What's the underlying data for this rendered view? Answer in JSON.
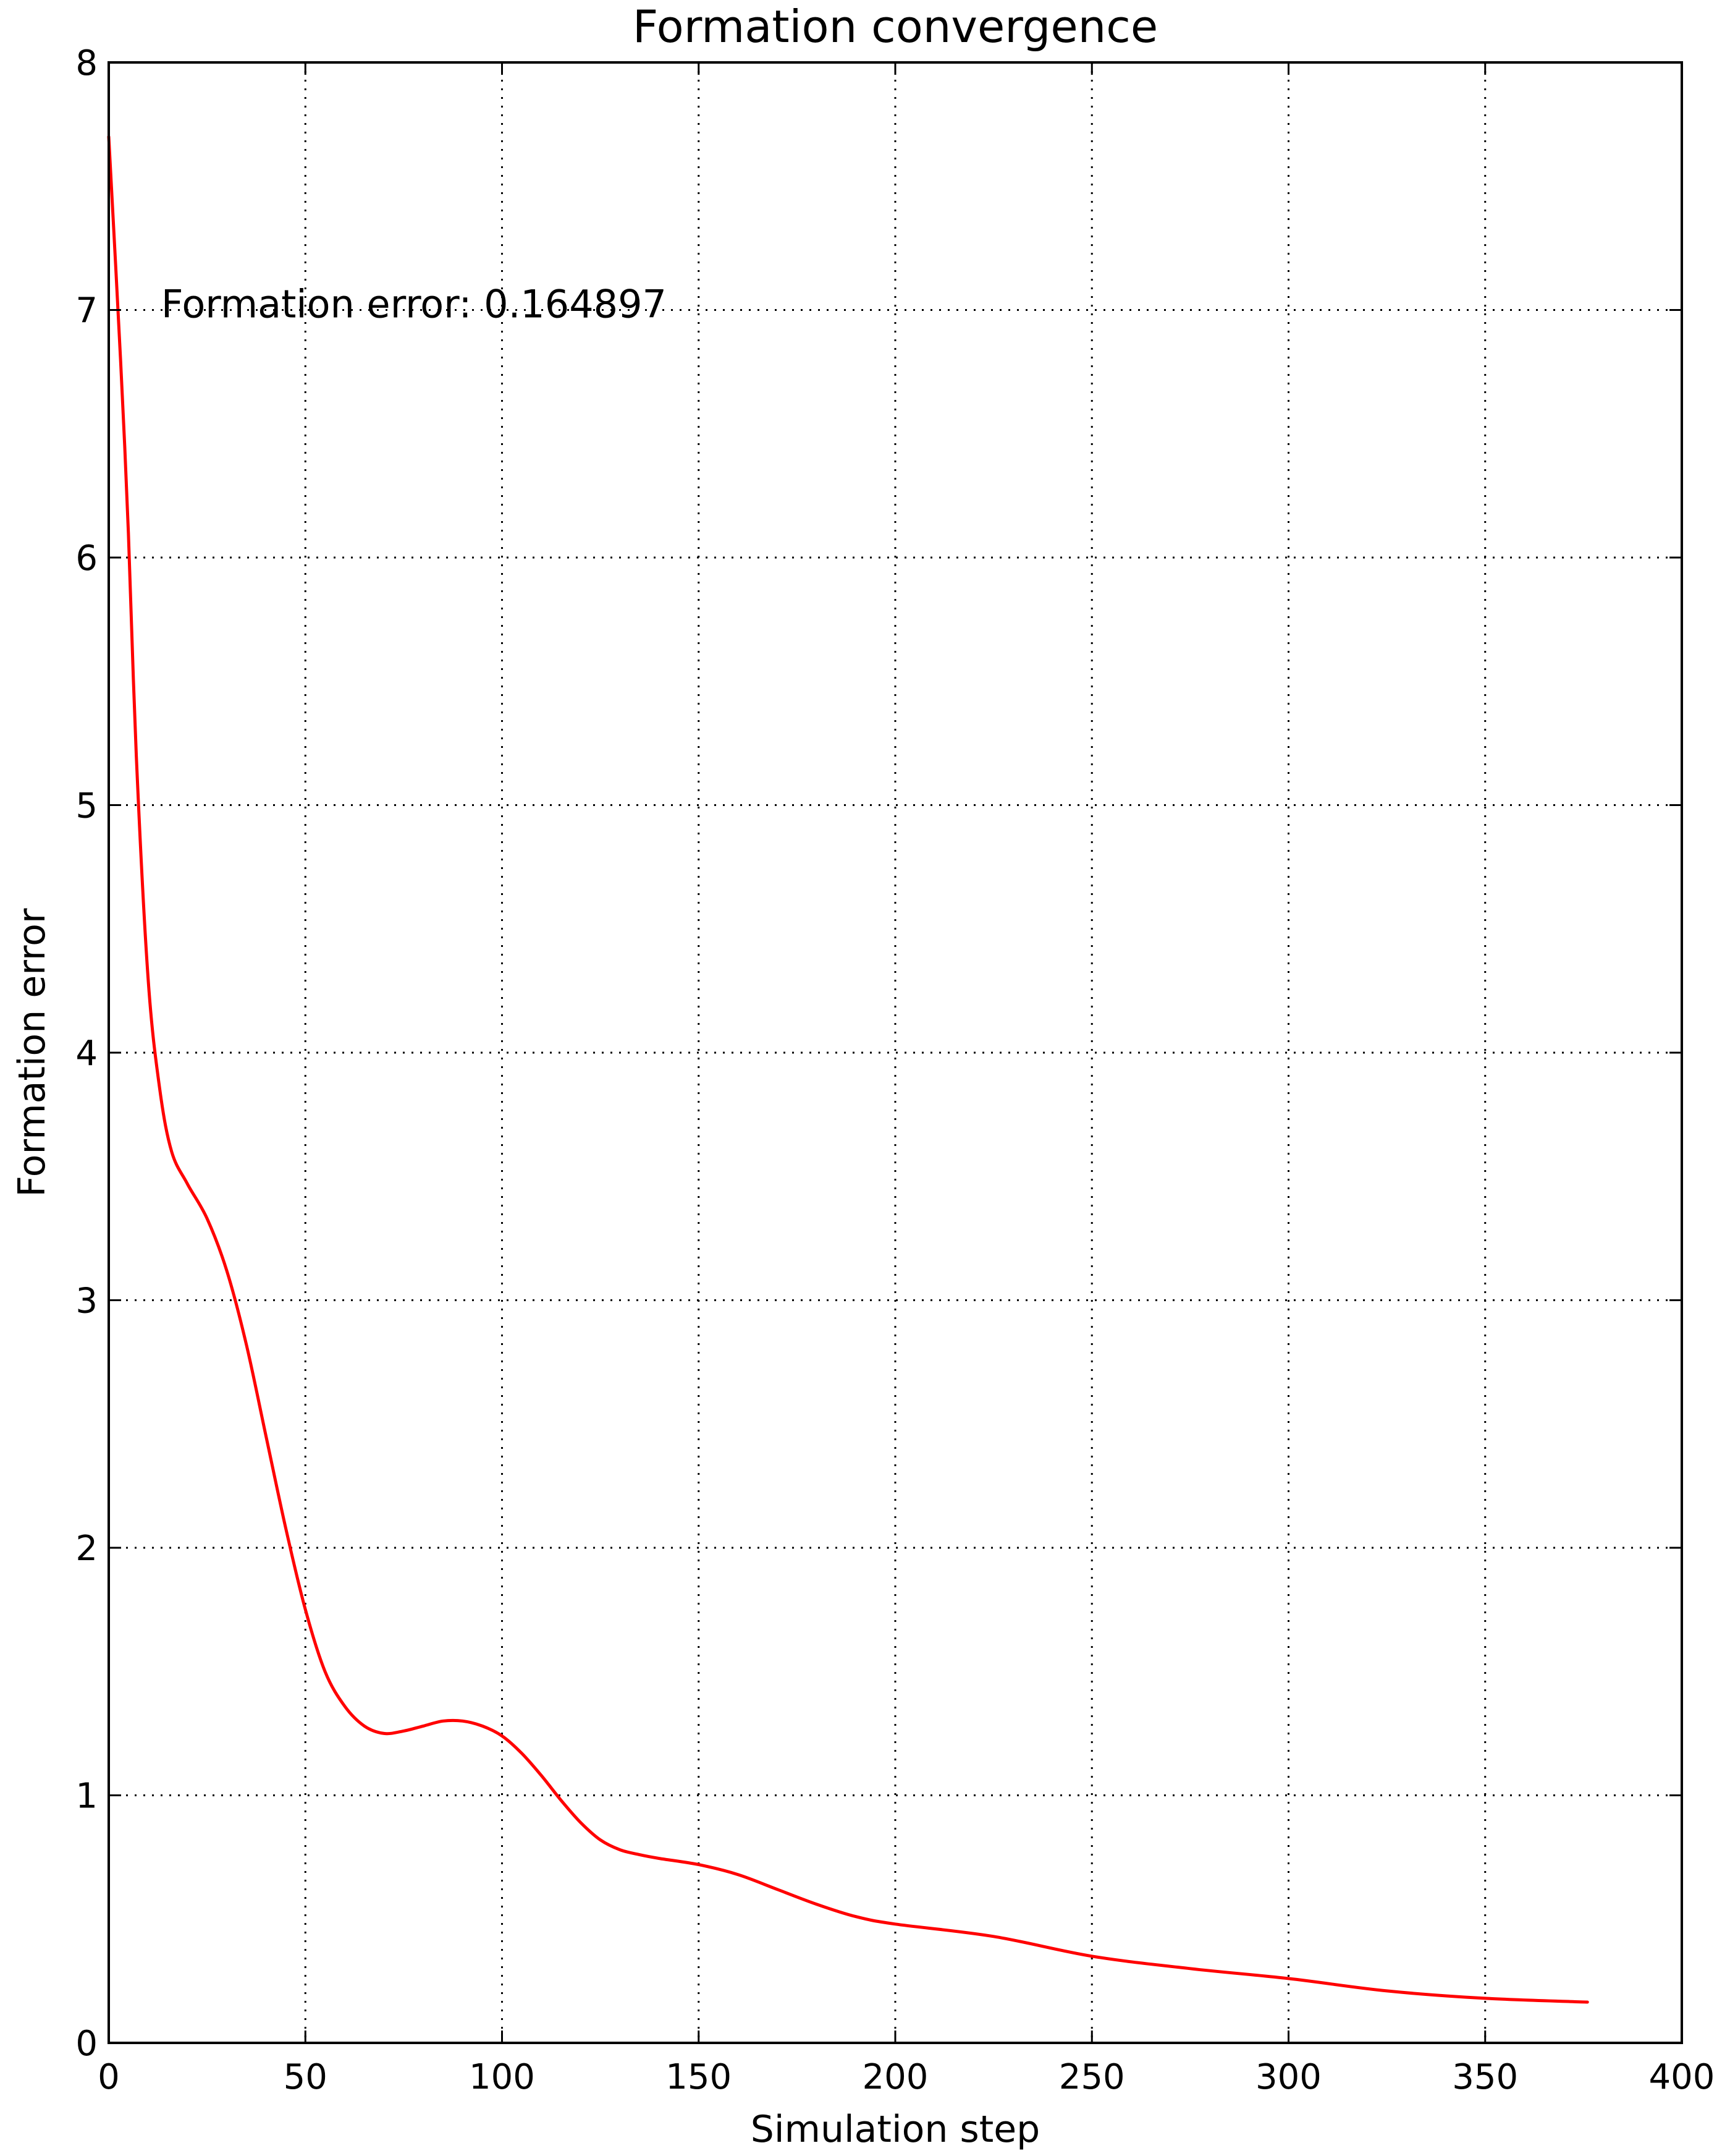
{
  "chart_data": {
    "type": "line",
    "title": "Formation convergence",
    "xlabel": "Simulation step",
    "ylabel": "Formation error",
    "xlim": [
      0,
      400
    ],
    "ylim": [
      0,
      8
    ],
    "xticks": [
      0,
      50,
      100,
      150,
      200,
      250,
      300,
      350,
      400
    ],
    "yticks": [
      0,
      1,
      2,
      3,
      4,
      5,
      6,
      7,
      8
    ],
    "xtick_labels": [
      "0",
      "50",
      "100",
      "150",
      "200",
      "250",
      "300",
      "350",
      "400"
    ],
    "ytick_labels": [
      "0",
      "1",
      "2",
      "3",
      "4",
      "5",
      "6",
      "7",
      "8"
    ],
    "grid": true,
    "grid_style": "dotted",
    "annotation": {
      "text": "Formation error: 0.164897",
      "x": 8,
      "y": 7.0
    },
    "series": [
      {
        "color": "#ff0000",
        "x": [
          0,
          3,
          5,
          7,
          10,
          13,
          16,
          20,
          25,
          30,
          35,
          40,
          45,
          50,
          55,
          60,
          65,
          70,
          75,
          80,
          85,
          90,
          95,
          100,
          105,
          110,
          115,
          120,
          125,
          130,
          135,
          140,
          150,
          160,
          170,
          180,
          190,
          200,
          225,
          250,
          275,
          300,
          325,
          350,
          376
        ],
        "y": [
          7.7,
          6.8,
          6.1,
          5.2,
          4.3,
          3.85,
          3.6,
          3.47,
          3.33,
          3.12,
          2.82,
          2.45,
          2.08,
          1.75,
          1.5,
          1.36,
          1.28,
          1.25,
          1.26,
          1.28,
          1.3,
          1.3,
          1.28,
          1.24,
          1.17,
          1.08,
          0.98,
          0.89,
          0.82,
          0.78,
          0.76,
          0.745,
          0.72,
          0.68,
          0.62,
          0.56,
          0.51,
          0.48,
          0.43,
          0.35,
          0.3,
          0.26,
          0.21,
          0.18,
          0.164897
        ]
      }
    ]
  }
}
